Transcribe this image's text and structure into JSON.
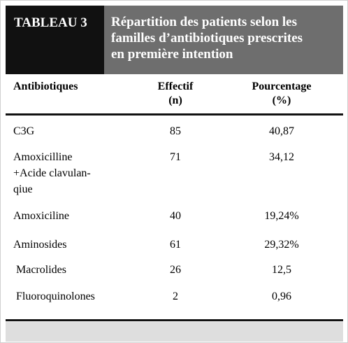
{
  "header": {
    "label": "TABLEAU 3",
    "title": [
      "Répartition des patients selon les",
      "familles d’antibiotiques prescrites",
      "en première intention"
    ]
  },
  "table": {
    "columns": [
      [
        "Antibiotiques"
      ],
      [
        "Effectif",
        "(n)"
      ],
      [
        "Pourcentage",
        "(%)"
      ]
    ],
    "rows": [
      [
        [
          "C3G"
        ],
        "85",
        "40,87"
      ],
      [
        [
          "Amoxicilline",
          "+Acide clavulan-",
          "qiue"
        ],
        "71",
        "34,12"
      ],
      [
        [
          "Amoxiciline"
        ],
        "40",
        "19,24%"
      ],
      [
        [
          "Aminosides"
        ],
        "61",
        "29,32%"
      ],
      [
        [
          "Macrolides"
        ],
        "26",
        "12,5"
      ],
      [
        [
          "Fluoroquinolones"
        ],
        "2",
        "0,96"
      ]
    ]
  }
}
